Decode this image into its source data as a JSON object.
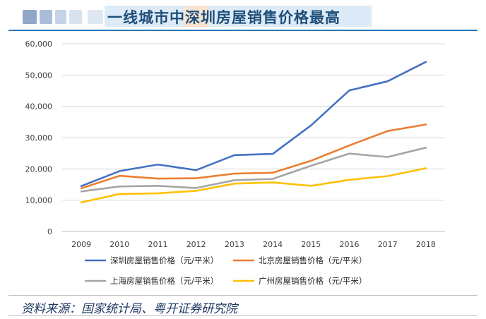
{
  "header": {
    "title": "一线城市中深圳房屋销售价格最高"
  },
  "source": {
    "text": "资料来源：国家统计局、粤开证券研究院"
  },
  "colors": {
    "title": "#1f4e79",
    "rule": "#2e75b6",
    "grid": "#d9d9d9",
    "axis_text": "#404040"
  },
  "chart_data": {
    "type": "line",
    "title": "一线城市中深圳房屋销售价格最高",
    "xlabel": "",
    "ylabel": "",
    "categories": [
      "2009",
      "2010",
      "2011",
      "2012",
      "2013",
      "2014",
      "2015",
      "2016",
      "2017",
      "2018"
    ],
    "ylim": [
      0,
      60000
    ],
    "yticks": [
      0,
      10000,
      20000,
      30000,
      40000,
      50000,
      60000
    ],
    "ytick_labels": [
      "0",
      "10,000",
      "20,000",
      "30,000",
      "40,000",
      "50,000",
      "60,000"
    ],
    "grid": true,
    "legend_position": "bottom",
    "series": [
      {
        "name": "深圳房屋销售价格（元/平米）",
        "color": "#4472c4",
        "values": [
          14500,
          19300,
          21400,
          19600,
          24400,
          24800,
          33900,
          45100,
          48000,
          54200
        ]
      },
      {
        "name": "北京房屋销售价格（元/平米）",
        "color": "#ed7d31",
        "values": [
          13800,
          17800,
          16900,
          17000,
          18500,
          18800,
          22600,
          27500,
          32100,
          34200
        ]
      },
      {
        "name": "上海房屋销售价格（元/平米）",
        "color": "#a5a5a5",
        "values": [
          12800,
          14400,
          14600,
          13900,
          16400,
          16800,
          21000,
          24900,
          23800,
          26800
        ]
      },
      {
        "name": "广州房屋销售价格（元/平米）",
        "color": "#ffc000",
        "values": [
          9300,
          12000,
          12200,
          13000,
          15300,
          15700,
          14600,
          16500,
          17700,
          20200
        ]
      }
    ]
  }
}
